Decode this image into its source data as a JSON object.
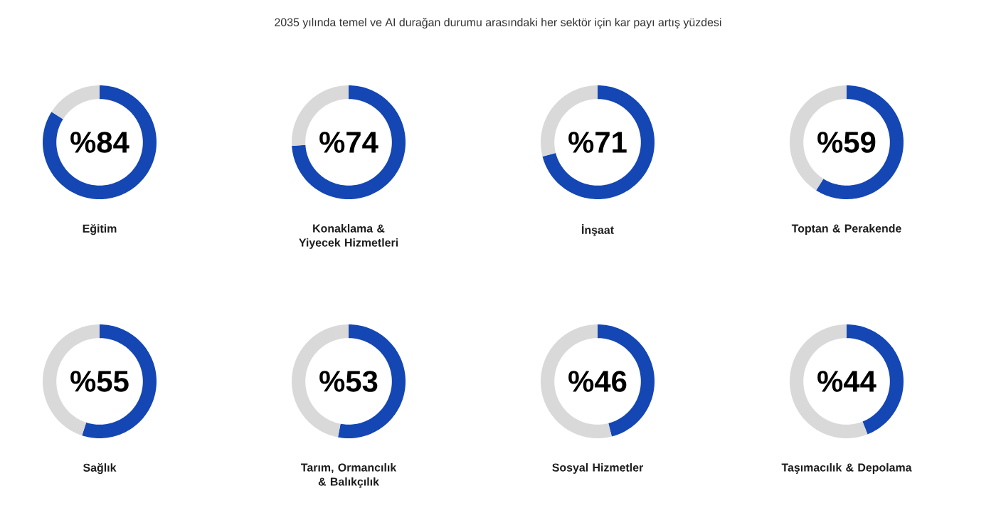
{
  "chart_data": [
    {
      "type": "donut",
      "title": "Eğitim",
      "subtitle": "%84",
      "categories": [
        null,
        null
      ],
      "values": [
        84,
        16
      ],
      "colors": [
        "#1446b4",
        "#d9d9d9"
      ],
      "annotations": [
        "2035 yılında temel ve AI durağan durumu arasındaki her sektör için kar payı artış yüzdesi"
      ]
    },
    {
      "type": "donut",
      "title": "Konaklama & Yiyecek Hizmetleri",
      "subtitle": "%74",
      "categories": [
        null,
        null
      ],
      "values": [
        74,
        26
      ],
      "colors": [
        "#1446b4",
        "#d9d9d9"
      ]
    },
    {
      "type": "donut",
      "title": "İnşaat",
      "subtitle": "%71",
      "categories": [
        null,
        null
      ],
      "values": [
        71,
        29
      ],
      "colors": [
        "#1446b4",
        "#d9d9d9"
      ]
    },
    {
      "type": "donut",
      "title": "Toptan & Perakende",
      "subtitle": "%59",
      "categories": [
        null,
        null
      ],
      "values": [
        59,
        41
      ],
      "colors": [
        "#1446b4",
        "#d9d9d9"
      ]
    },
    {
      "type": "donut",
      "title": "Sağlık",
      "subtitle": "%55",
      "categories": [
        null,
        null
      ],
      "values": [
        55,
        45
      ],
      "colors": [
        "#1446b4",
        "#d9d9d9"
      ]
    },
    {
      "type": "donut",
      "title": "Tarım, Ormancılık & Balıkçılık",
      "subtitle": "%53",
      "categories": [
        null,
        null
      ],
      "values": [
        53,
        47
      ],
      "colors": [
        "#1446b4",
        "#d9d9d9"
      ]
    },
    {
      "type": "donut",
      "title": "Sosyal Hizmetler",
      "subtitle": "%46",
      "categories": [
        null,
        null
      ],
      "values": [
        46,
        54
      ],
      "colors": [
        "#1446b4",
        "#d9d9d9"
      ]
    },
    {
      "type": "donut",
      "title": "Taşımacılık & Depolama",
      "subtitle": "%44",
      "categories": [
        null,
        null
      ],
      "values": [
        44,
        56
      ],
      "colors": [
        "#1446b4",
        "#d9d9d9"
      ]
    }
  ]
}
